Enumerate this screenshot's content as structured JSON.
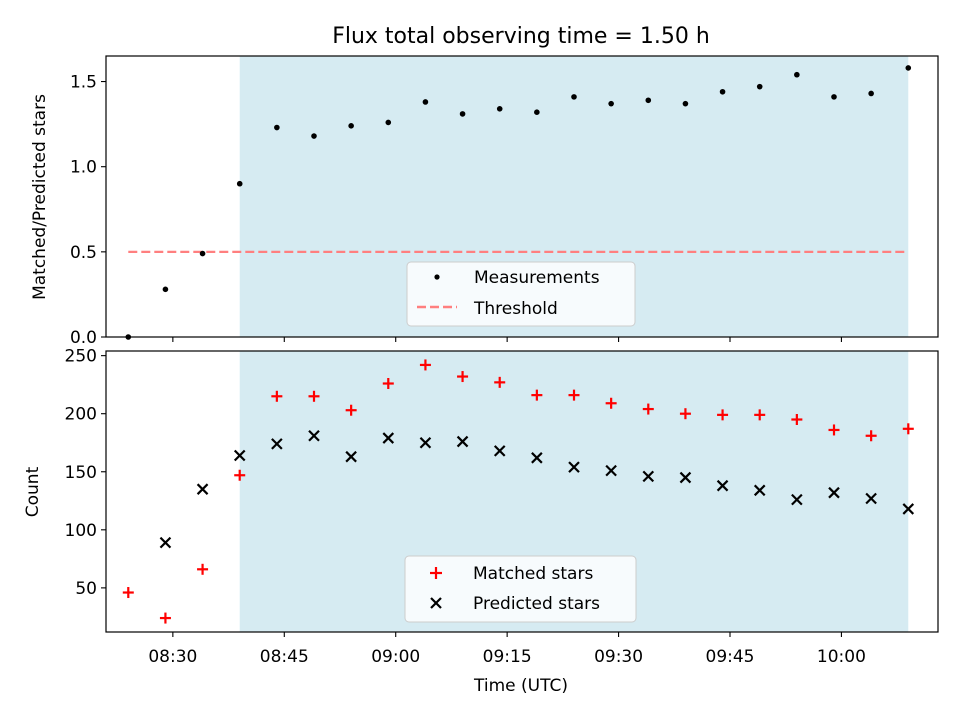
{
  "chart_data": [
    {
      "type": "scatter",
      "title": "Flux total observing time = 1.50 h",
      "xlabel": "",
      "ylabel": "Matched/Predicted stars",
      "ylim": [
        0,
        1.65
      ],
      "yticks": [
        "0.0",
        "0.5",
        "1.0",
        "1.5"
      ],
      "xlim": [
        "08:21",
        "10:13"
      ],
      "shaded_region": {
        "x_start": "08:39",
        "x_end": "10:09",
        "color": "#add8e6"
      },
      "series": [
        {
          "name": "Measurements",
          "marker": "dot",
          "color": "#000000",
          "x": [
            "08:24",
            "08:29",
            "08:34",
            "08:39",
            "08:44",
            "08:49",
            "08:54",
            "08:59",
            "09:04",
            "09:09",
            "09:14",
            "09:19",
            "09:24",
            "09:29",
            "09:34",
            "09:39",
            "09:44",
            "09:49",
            "09:54",
            "09:59",
            "10:04",
            "10:09"
          ],
          "y": [
            0.0,
            0.28,
            0.49,
            0.9,
            1.23,
            1.18,
            1.24,
            1.26,
            1.38,
            1.31,
            1.34,
            1.32,
            1.41,
            1.37,
            1.39,
            1.37,
            1.44,
            1.47,
            1.54,
            1.41,
            1.43,
            1.58
          ]
        },
        {
          "name": "Threshold",
          "marker": "dashed-line",
          "color": "#ff7f7f",
          "x": [
            "08:24",
            "10:09"
          ],
          "y": [
            0.5,
            0.5
          ]
        }
      ],
      "legend": {
        "placement": "lower-center"
      }
    },
    {
      "type": "scatter",
      "title": "",
      "xlabel": "Time (UTC)",
      "ylabel": "Count",
      "ylim": [
        12,
        254
      ],
      "yticks": [
        "50",
        "100",
        "150",
        "200",
        "250"
      ],
      "xlim": [
        "08:21",
        "10:13"
      ],
      "xticks": [
        "08:30",
        "08:45",
        "09:00",
        "09:15",
        "09:30",
        "09:45",
        "10:00"
      ],
      "shaded_region": {
        "x_start": "08:39",
        "x_end": "10:09",
        "color": "#add8e6"
      },
      "series": [
        {
          "name": "Matched stars",
          "marker": "plus",
          "color": "#ff0000",
          "x": [
            "08:24",
            "08:29",
            "08:34",
            "08:39",
            "08:44",
            "08:49",
            "08:54",
            "08:59",
            "09:04",
            "09:09",
            "09:14",
            "09:19",
            "09:24",
            "09:29",
            "09:34",
            "09:39",
            "09:44",
            "09:49",
            "09:54",
            "09:59",
            "10:04",
            "10:09"
          ],
          "y": [
            46,
            24,
            66,
            147,
            215,
            215,
            203,
            226,
            242,
            232,
            227,
            216,
            216,
            209,
            204,
            200,
            199,
            199,
            195,
            186,
            181,
            187
          ]
        },
        {
          "name": "Predicted stars",
          "marker": "x",
          "color": "#000000",
          "x": [
            "08:29",
            "08:34",
            "08:39",
            "08:44",
            "08:49",
            "08:54",
            "08:59",
            "09:04",
            "09:09",
            "09:14",
            "09:19",
            "09:24",
            "09:29",
            "09:34",
            "09:39",
            "09:44",
            "09:49",
            "09:54",
            "09:59",
            "10:04",
            "10:09"
          ],
          "y": [
            89,
            135,
            164,
            174,
            181,
            163,
            179,
            175,
            176,
            168,
            162,
            154,
            151,
            146,
            145,
            138,
            134,
            126,
            132,
            127,
            118
          ]
        }
      ],
      "legend": {
        "placement": "lower-center"
      }
    }
  ]
}
